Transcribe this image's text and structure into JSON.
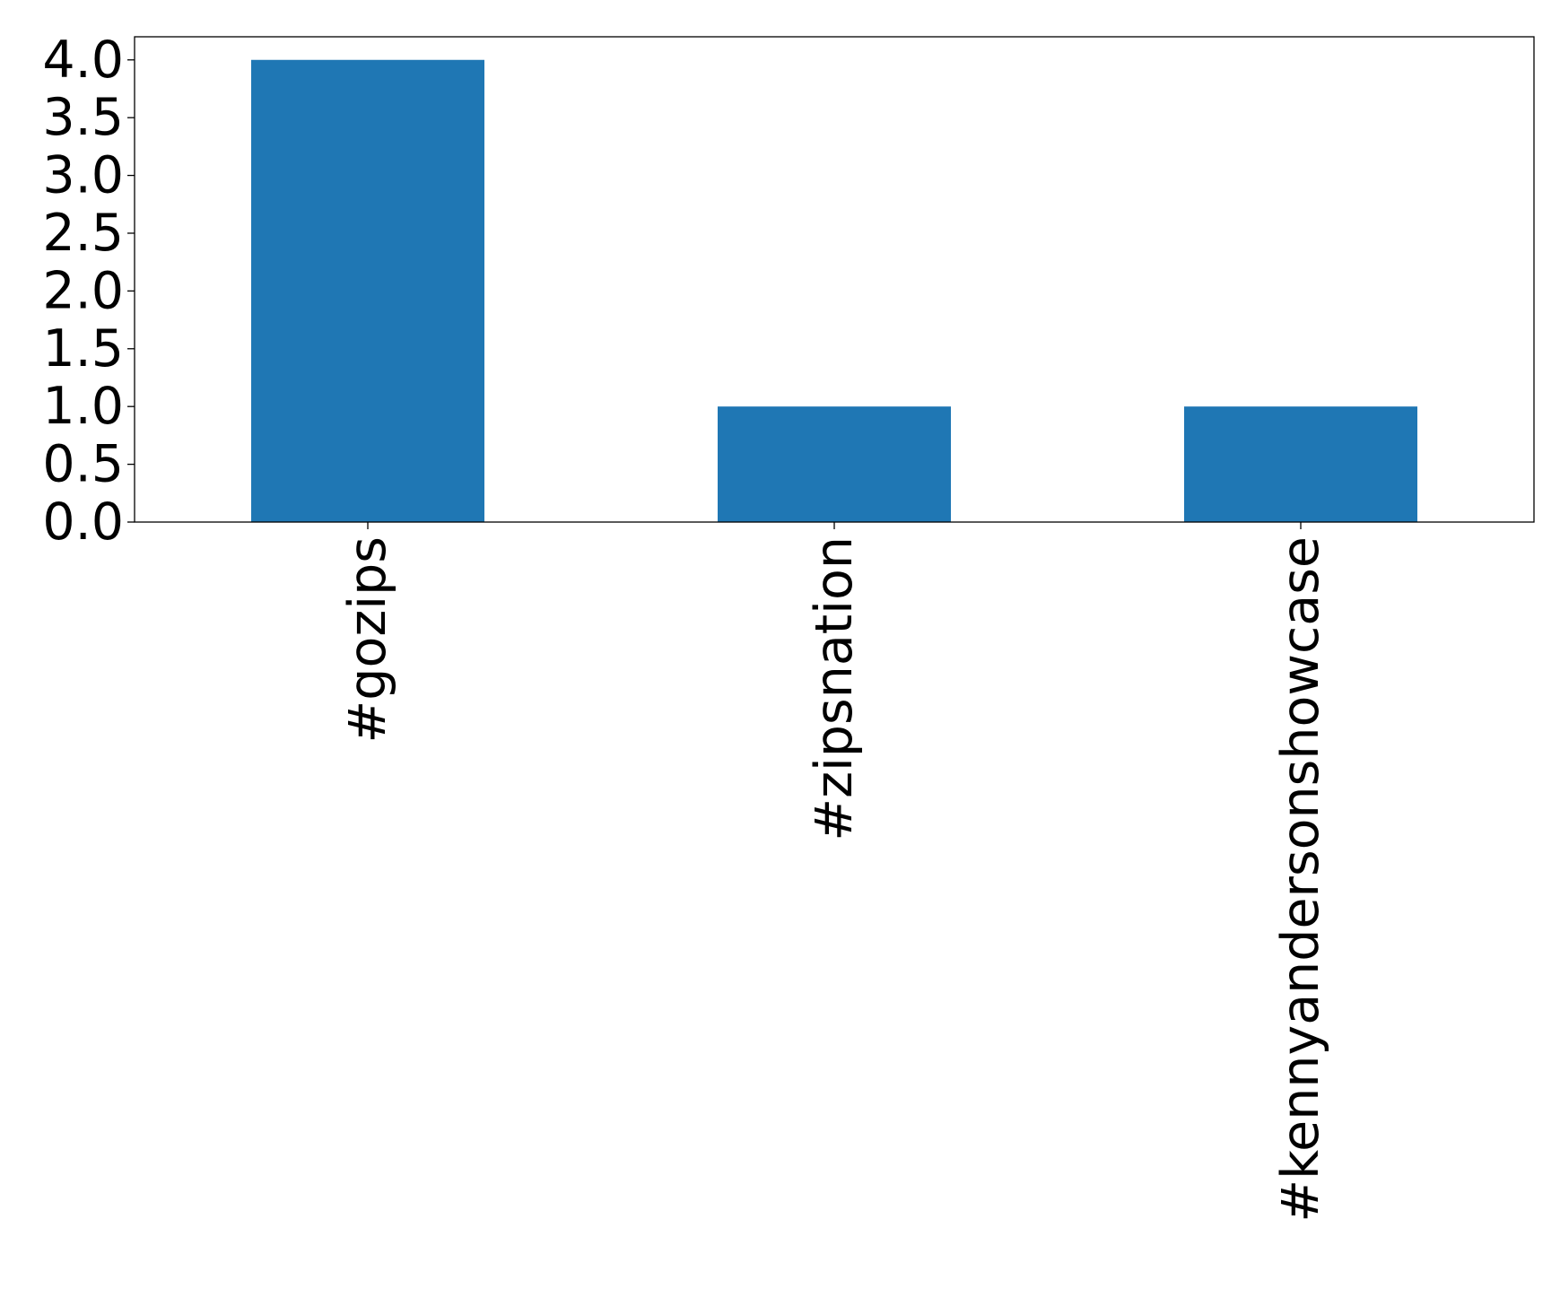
{
  "chart_data": {
    "type": "bar",
    "title": "",
    "xlabel": "",
    "ylabel": "",
    "categories": [
      "#gozips",
      "#zipsnation",
      "#kennyandersonshowcase"
    ],
    "values": [
      4,
      1,
      1
    ],
    "ylim": [
      0,
      4.2
    ],
    "yticks": [
      "0.0",
      "0.5",
      "1.0",
      "1.5",
      "2.0",
      "2.5",
      "3.0",
      "3.5",
      "4.0"
    ],
    "xtick_rotation": "vertical",
    "grid": false,
    "legend": "none",
    "bar_color": "#1f77b4"
  }
}
